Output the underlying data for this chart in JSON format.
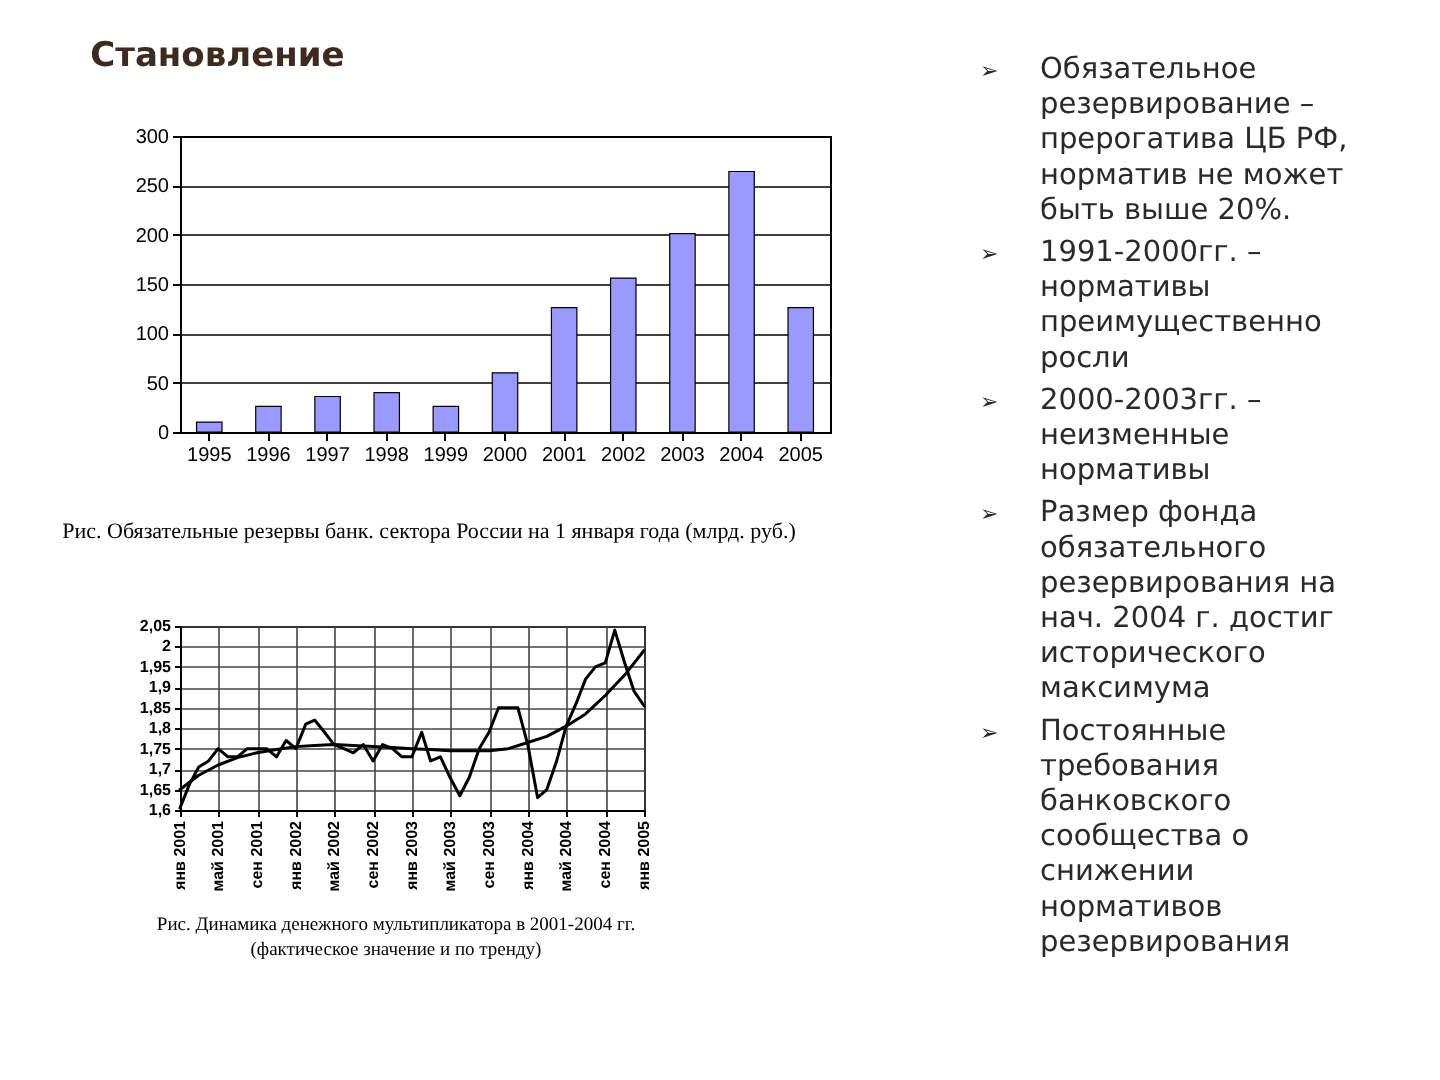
{
  "chart_data": [
    {
      "type": "bar",
      "title": "Становление",
      "categories": [
        "1995",
        "1996",
        "1997",
        "1998",
        "1999",
        "2000",
        "2001",
        "2002",
        "2003",
        "2004",
        "2005"
      ],
      "values": [
        10,
        26,
        36,
        40,
        26,
        60,
        126,
        156,
        201,
        264,
        126
      ],
      "color": "#9999ff",
      "ylim": [
        0,
        300
      ],
      "yticks": [
        0,
        50,
        100,
        150,
        200,
        250,
        300
      ],
      "grid": "y",
      "annotations": [
        "Рис. Обязательные резервы банк. сектора России на 1 января года (млрд. руб.)"
      ]
    },
    {
      "type": "line",
      "series": [
        {
          "color": "#000000",
          "x": [
            "2001-01",
            "2001-02",
            "2001-03",
            "2001-04",
            "2001-05",
            "2001-06",
            "2001-07",
            "2001-08",
            "2001-09",
            "2001-10",
            "2001-11",
            "2001-12",
            "2002-01",
            "2002-02",
            "2002-03",
            "2002-04",
            "2002-05",
            "2002-06",
            "2002-07",
            "2002-08",
            "2002-09",
            "2002-10",
            "2002-11",
            "2002-12",
            "2003-01",
            "2003-02",
            "2003-03",
            "2003-04",
            "2003-05",
            "2003-06",
            "2003-07",
            "2003-08",
            "2003-09",
            "2003-10",
            "2003-11",
            "2003-12",
            "2004-01",
            "2004-02",
            "2004-03",
            "2004-04",
            "2004-05",
            "2004-06",
            "2004-07",
            "2004-08",
            "2004-09",
            "2004-10",
            "2004-11",
            "2004-12",
            "2005-01"
          ],
          "values": [
            1.605,
            1.665,
            1.705,
            1.72,
            1.75,
            1.73,
            1.73,
            1.75,
            1.75,
            1.75,
            1.73,
            1.77,
            1.75,
            1.81,
            1.82,
            1.79,
            1.76,
            1.75,
            1.74,
            1.76,
            1.72,
            1.76,
            1.75,
            1.73,
            1.73,
            1.79,
            1.72,
            1.73,
            1.68,
            1.635,
            1.68,
            1.75,
            1.79,
            1.85,
            1.85,
            1.85,
            1.76,
            1.63,
            1.65,
            1.72,
            1.805,
            1.86,
            1.92,
            1.95,
            1.96,
            2.04,
            1.96,
            1.89,
            1.855
          ]
        },
        {
          "color": "#000000",
          "x": [
            "2001-01",
            "2001-03",
            "2001-05",
            "2001-07",
            "2001-09",
            "2001-11",
            "2002-01",
            "2002-03",
            "2002-05",
            "2002-07",
            "2002-09",
            "2002-11",
            "2003-01",
            "2003-03",
            "2003-05",
            "2003-07",
            "2003-09",
            "2003-11",
            "2004-01",
            "2004-03",
            "2004-05",
            "2004-07",
            "2004-09",
            "2004-11",
            "2005-01"
          ],
          "values": [
            1.65,
            1.685,
            1.71,
            1.728,
            1.74,
            1.748,
            1.755,
            1.758,
            1.76,
            1.758,
            1.755,
            1.753,
            1.75,
            1.748,
            1.745,
            1.745,
            1.745,
            1.75,
            1.765,
            1.78,
            1.805,
            1.835,
            1.88,
            1.93,
            1.99
          ]
        }
      ],
      "xlim": [
        "2001-01",
        "2005-01"
      ],
      "xticks": [
        {
          "value": "2001-01",
          "label": "янв 2001"
        },
        {
          "value": "2001-05",
          "label": "май 2001"
        },
        {
          "value": "2001-09",
          "label": "сен 2001"
        },
        {
          "value": "2002-01",
          "label": "янв 2002"
        },
        {
          "value": "2002-05",
          "label": "май 2002"
        },
        {
          "value": "2002-09",
          "label": "сен 2002"
        },
        {
          "value": "2003-01",
          "label": "янв 2003"
        },
        {
          "value": "2003-05",
          "label": "май 2003"
        },
        {
          "value": "2003-09",
          "label": "сен 2003"
        },
        {
          "value": "2004-01",
          "label": "янв 2004"
        },
        {
          "value": "2004-05",
          "label": "май 2004"
        },
        {
          "value": "2004-09",
          "label": "сен 2004"
        },
        {
          "value": "2005-01",
          "label": "янв 2005"
        }
      ],
      "ylim": [
        1.6,
        2.05
      ],
      "yticks": [
        {
          "value": 1.6,
          "label": "1,6"
        },
        {
          "value": 1.65,
          "label": "1,65"
        },
        {
          "value": 1.7,
          "label": "1,7"
        },
        {
          "value": 1.75,
          "label": "1,75"
        },
        {
          "value": 1.8,
          "label": "1,8"
        },
        {
          "value": 1.85,
          "label": "1,85"
        },
        {
          "value": 1.9,
          "label": "1,9"
        },
        {
          "value": 1.95,
          "label": "1,95"
        },
        2,
        {
          "value": 2.05,
          "label": "2,05"
        }
      ],
      "grid": true,
      "annotations": [
        "Рис. Динамика денежного мультипликатора в 2001-2004 гг. (фактическое значение и по тренду)"
      ]
    },
    {
      "type": "other",
      "annotations": [
        "➢ Обязательное резервирование – прерогатива ЦБ РФ, норматив не может быть выше 20%.",
        "➢ 1991-2000гг. – нормативы преимущественно росли",
        "➢ 2000-2003гг. – неизменные нормативы",
        "➢ Размер фонда обязательного резервирования на нач. 2004 г. достиг исторического максимума",
        "➢ Постоянные требования банковского сообщества о снижении нормативов резервирования"
      ]
    }
  ]
}
